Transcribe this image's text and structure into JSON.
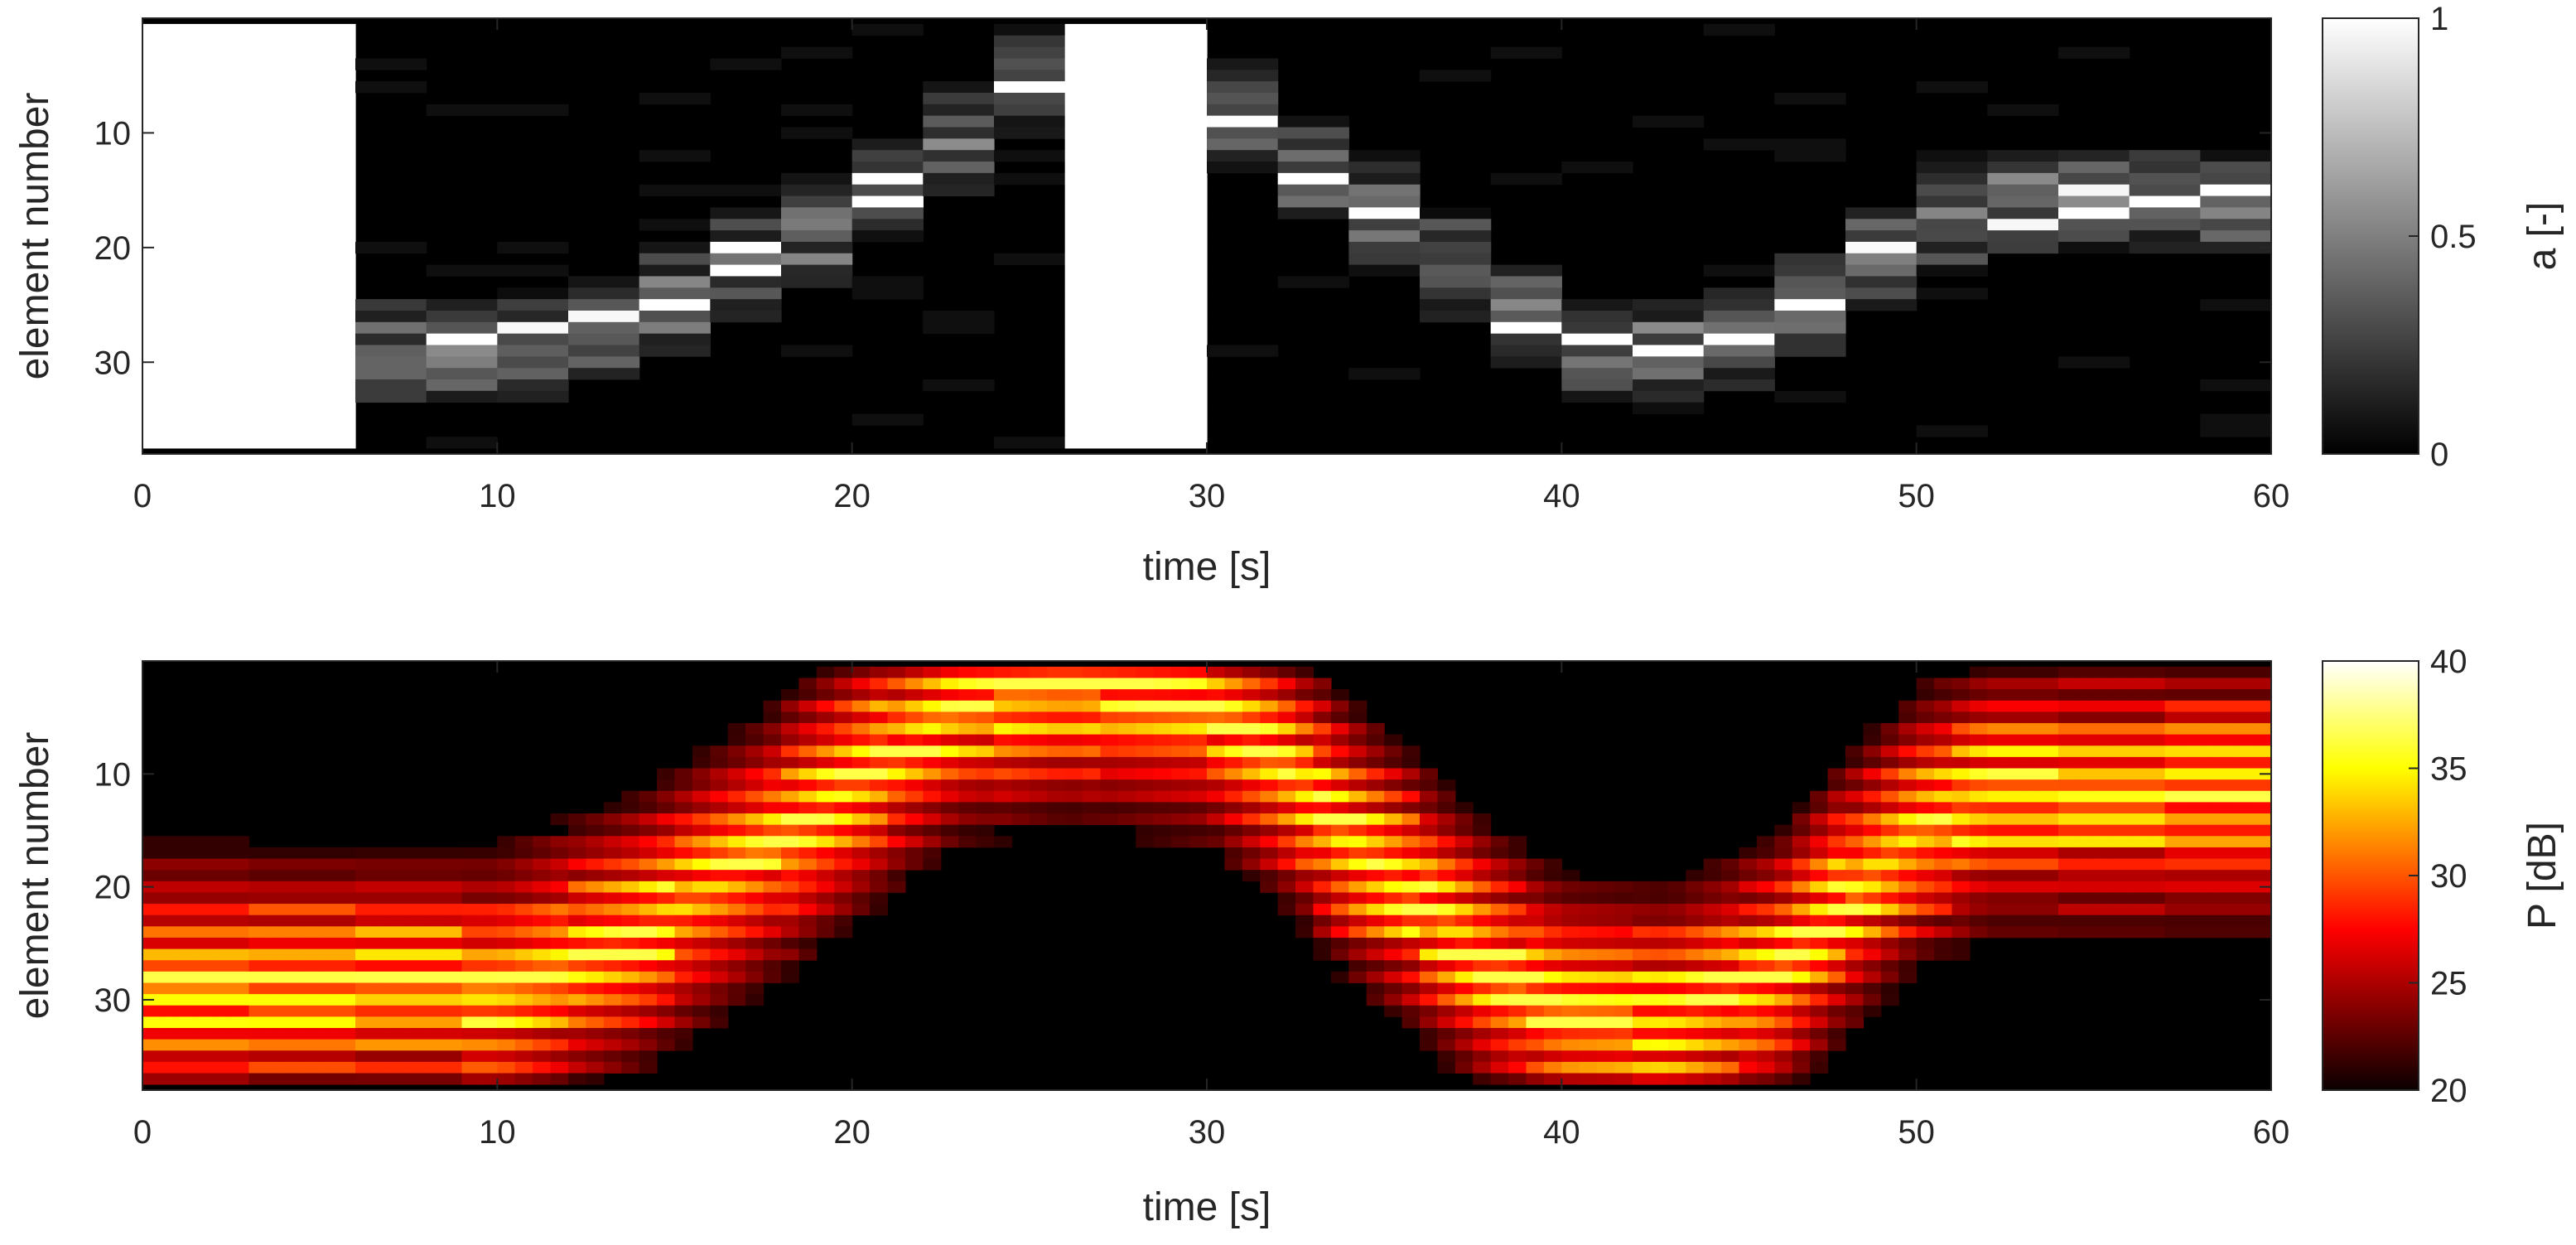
{
  "chart_data": [
    {
      "type": "heatmap",
      "colormap": "gray",
      "xlabel": "time [s]",
      "ylabel": "element number",
      "colorbar_label": "a [-]",
      "xlim": [
        0,
        60
      ],
      "ylim": [
        38,
        0
      ],
      "x_ticks": [
        0,
        10,
        20,
        30,
        40,
        50,
        60
      ],
      "y_ticks": [
        10,
        20,
        30
      ],
      "clim": [
        0,
        1
      ],
      "colorbar_ticks": [
        "0",
        "0.5",
        "1"
      ],
      "time_step_s": 2,
      "element_count": 37,
      "saturated_regions": [
        {
          "t_start": 0,
          "t_end": 6,
          "value": 1
        },
        {
          "t_start": 26,
          "t_end": 30,
          "value": 1
        }
      ],
      "beam_center": [
        [
          6,
          29
        ],
        [
          8,
          29
        ],
        [
          10,
          29
        ],
        [
          12,
          28
        ],
        [
          14,
          26
        ],
        [
          16,
          23
        ],
        [
          18,
          20
        ],
        [
          20,
          17
        ],
        [
          22,
          13
        ],
        [
          24,
          8
        ],
        [
          26,
          3
        ],
        [
          28,
          3
        ],
        [
          30,
          6
        ],
        [
          32,
          11
        ],
        [
          34,
          15
        ],
        [
          36,
          19
        ],
        [
          38,
          24
        ],
        [
          40,
          28
        ],
        [
          42,
          30
        ],
        [
          44,
          29
        ],
        [
          46,
          27
        ],
        [
          48,
          23
        ],
        [
          50,
          19
        ],
        [
          52,
          16
        ],
        [
          54,
          16
        ],
        [
          56,
          16
        ],
        [
          58,
          16
        ],
        [
          60,
          16
        ]
      ],
      "beam_halfwidth_elements": 4
    },
    {
      "type": "heatmap",
      "colormap": "hot",
      "xlabel": "time [s]",
      "ylabel": "element number",
      "colorbar_label": "P [dB]",
      "xlim": [
        0,
        60
      ],
      "ylim": [
        38,
        0
      ],
      "x_ticks": [
        0,
        10,
        20,
        30,
        40,
        50,
        60
      ],
      "y_ticks": [
        10,
        20,
        30
      ],
      "clim": [
        20,
        40
      ],
      "colorbar_ticks": [
        "20",
        "25",
        "30",
        "35",
        "40"
      ],
      "time_step_s": 0.5,
      "element_count": 37,
      "beam_center": [
        [
          0,
          29
        ],
        [
          10,
          29
        ],
        [
          14,
          24
        ],
        [
          17,
          18
        ],
        [
          20,
          11
        ],
        [
          23,
          4
        ],
        [
          26,
          2
        ],
        [
          30,
          4
        ],
        [
          32,
          9
        ],
        [
          34,
          16
        ],
        [
          36,
          21
        ],
        [
          38,
          27
        ],
        [
          40,
          31
        ],
        [
          43,
          32
        ],
        [
          46,
          28
        ],
        [
          48,
          21
        ],
        [
          50,
          15
        ],
        [
          52,
          12
        ],
        [
          60,
          12
        ]
      ],
      "beam_halfwidth_elements": 14
    }
  ]
}
